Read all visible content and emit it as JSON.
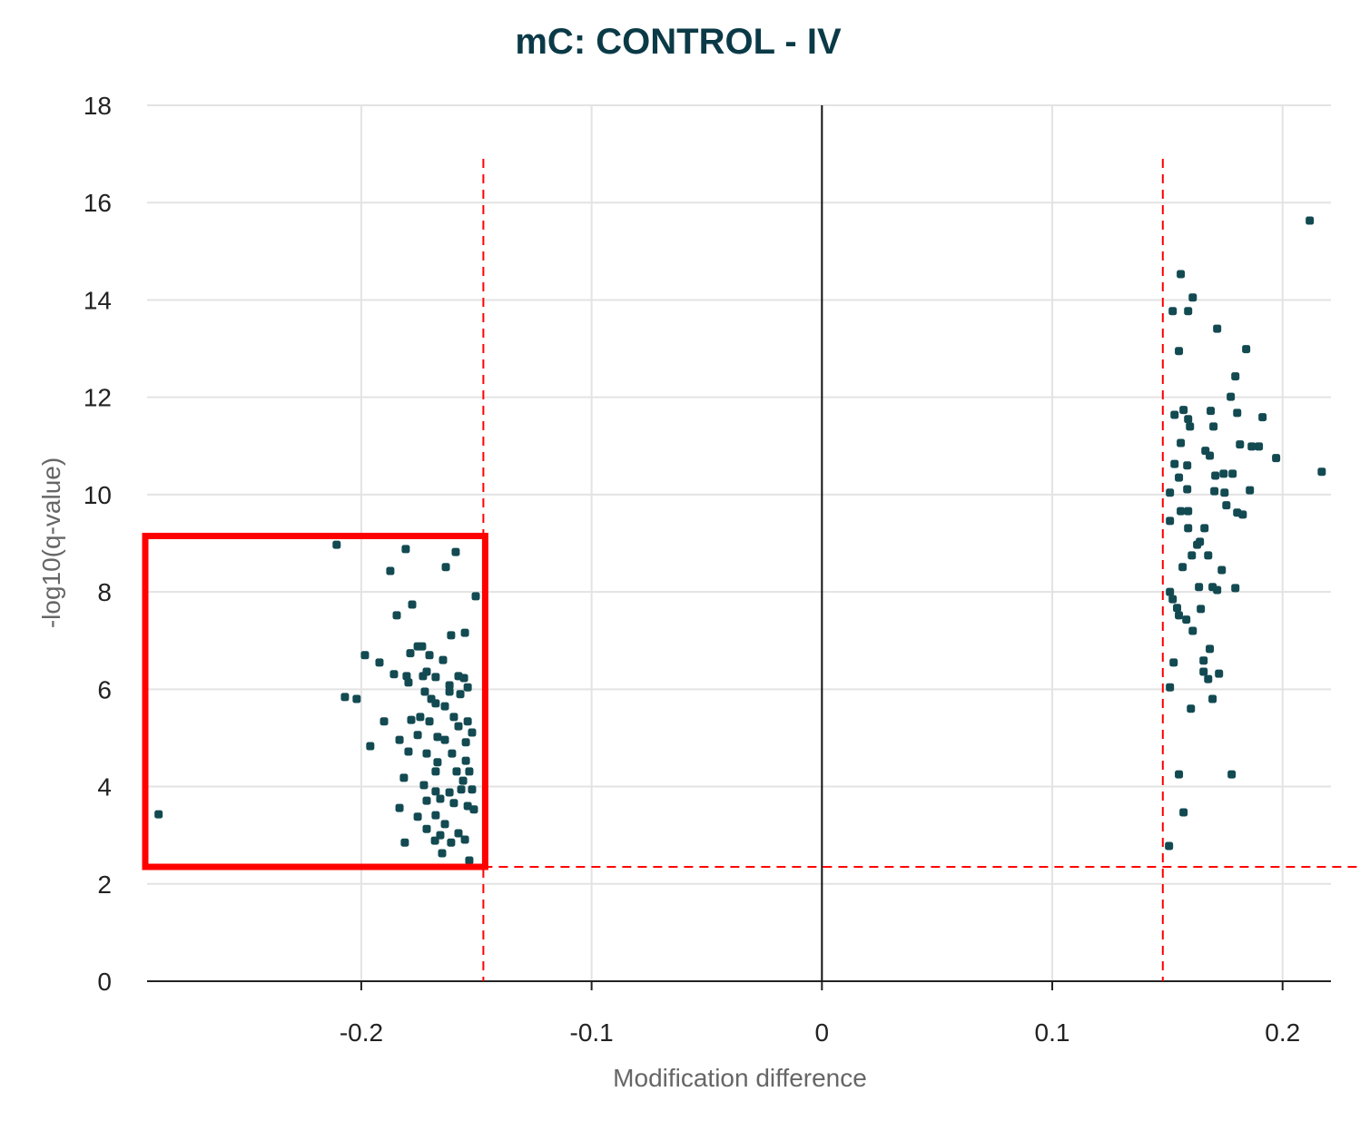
{
  "chart_data": {
    "type": "scatter",
    "title": "mC: CONTROL - IV",
    "xlabel": "Modification difference",
    "ylabel": "-log10(q-value)",
    "xlim": [
      -0.293,
      0.221
    ],
    "ylim": [
      0,
      18
    ],
    "xticks": [
      -0.2,
      -0.1,
      0,
      0.1,
      0.2
    ],
    "xtick_labels": [
      "-0.2",
      "-0.1",
      "0",
      "0.1",
      "0.2"
    ],
    "yticks": [
      0,
      2,
      4,
      6,
      8,
      10,
      12,
      14,
      16,
      18
    ],
    "ytick_labels": [
      "0",
      "2",
      "4",
      "6",
      "8",
      "10",
      "12",
      "14",
      "16",
      "18"
    ],
    "grid": true,
    "point_color": "#134a52",
    "threshold_color": "#ff0000",
    "thresholds": {
      "x": [
        -0.147,
        0.148
      ],
      "x_line_top": 16.9,
      "y": 2.35
    },
    "highlight_box": {
      "color": "#ff0000",
      "x": [
        -0.293,
        -0.147
      ],
      "y": [
        2.35,
        9.15
      ]
    },
    "points": [
      [
        0.2118,
        15.63
      ],
      [
        0.1558,
        14.53
      ],
      [
        0.161,
        14.05
      ],
      [
        0.1523,
        13.77
      ],
      [
        0.159,
        13.77
      ],
      [
        0.1716,
        13.41
      ],
      [
        0.155,
        12.95
      ],
      [
        0.1842,
        12.99
      ],
      [
        0.1795,
        12.43
      ],
      [
        0.1775,
        12.01
      ],
      [
        0.1531,
        11.64
      ],
      [
        0.157,
        11.74
      ],
      [
        0.1688,
        11.72
      ],
      [
        0.159,
        11.55
      ],
      [
        0.1803,
        11.68
      ],
      [
        0.1913,
        11.59
      ],
      [
        0.1598,
        11.4
      ],
      [
        0.17,
        11.4
      ],
      [
        0.1558,
        11.06
      ],
      [
        0.1815,
        11.03
      ],
      [
        0.1866,
        10.99
      ],
      [
        0.1897,
        10.99
      ],
      [
        0.1972,
        10.75
      ],
      [
        0.1665,
        10.9
      ],
      [
        0.1684,
        10.8
      ],
      [
        0.217,
        10.47
      ],
      [
        0.1531,
        10.63
      ],
      [
        0.1586,
        10.6
      ],
      [
        0.155,
        10.35
      ],
      [
        0.1708,
        10.39
      ],
      [
        0.1744,
        10.43
      ],
      [
        0.1783,
        10.43
      ],
      [
        0.1704,
        10.07
      ],
      [
        0.1586,
        10.11
      ],
      [
        0.1511,
        10.04
      ],
      [
        0.1748,
        10.04
      ],
      [
        0.1858,
        10.09
      ],
      [
        0.1756,
        9.78
      ],
      [
        0.1803,
        9.63
      ],
      [
        0.1827,
        9.59
      ],
      [
        0.1558,
        9.66
      ],
      [
        0.159,
        9.66
      ],
      [
        0.1511,
        9.46
      ],
      [
        0.1661,
        9.31
      ],
      [
        0.159,
        9.31
      ],
      [
        0.1641,
        9.03
      ],
      [
        0.1629,
        8.97
      ],
      [
        0.1677,
        8.75
      ],
      [
        0.1606,
        8.75
      ],
      [
        0.1566,
        8.51
      ],
      [
        0.1736,
        8.45
      ],
      [
        0.1637,
        8.1
      ],
      [
        0.1696,
        8.1
      ],
      [
        0.1716,
        8.04
      ],
      [
        0.1795,
        8.08
      ],
      [
        0.1511,
        8.0
      ],
      [
        0.1523,
        7.85
      ],
      [
        0.1542,
        7.67
      ],
      [
        0.1645,
        7.65
      ],
      [
        0.155,
        7.52
      ],
      [
        0.1582,
        7.43
      ],
      [
        0.161,
        7.2
      ],
      [
        0.1684,
        6.83
      ],
      [
        0.1657,
        6.59
      ],
      [
        0.1527,
        6.55
      ],
      [
        0.1724,
        6.32
      ],
      [
        0.1657,
        6.36
      ],
      [
        0.1677,
        6.21
      ],
      [
        0.1511,
        6.04
      ],
      [
        0.1696,
        5.8
      ],
      [
        0.1602,
        5.6
      ],
      [
        0.155,
        4.25
      ],
      [
        0.1779,
        4.25
      ],
      [
        0.157,
        3.47
      ],
      [
        0.1507,
        2.78
      ],
      [
        -0.2107,
        8.97
      ],
      [
        -0.1807,
        8.88
      ],
      [
        -0.159,
        8.82
      ],
      [
        -0.1633,
        8.51
      ],
      [
        -0.1874,
        8.43
      ],
      [
        -0.1503,
        7.91
      ],
      [
        -0.1779,
        7.74
      ],
      [
        -0.1846,
        7.52
      ],
      [
        -0.155,
        7.16
      ],
      [
        -0.161,
        7.11
      ],
      [
        -0.1984,
        6.7
      ],
      [
        -0.1921,
        6.55
      ],
      [
        -0.1755,
        6.88
      ],
      [
        -0.1736,
        6.88
      ],
      [
        -0.1787,
        6.74
      ],
      [
        -0.1704,
        6.7
      ],
      [
        -0.1645,
        6.6
      ],
      [
        -0.1716,
        6.36
      ],
      [
        -0.1858,
        6.31
      ],
      [
        -0.1803,
        6.27
      ],
      [
        -0.1732,
        6.27
      ],
      [
        -0.1677,
        6.25
      ],
      [
        -0.1578,
        6.27
      ],
      [
        -0.1554,
        6.23
      ],
      [
        -0.1617,
        6.08
      ],
      [
        -0.1538,
        6.04
      ],
      [
        -0.1795,
        6.14
      ],
      [
        -0.2071,
        5.84
      ],
      [
        -0.202,
        5.8
      ],
      [
        -0.1724,
        5.95
      ],
      [
        -0.1696,
        5.8
      ],
      [
        -0.1617,
        5.95
      ],
      [
        -0.157,
        5.9
      ],
      [
        -0.1677,
        5.71
      ],
      [
        -0.1637,
        5.65
      ],
      [
        -0.1744,
        5.43
      ],
      [
        -0.1783,
        5.37
      ],
      [
        -0.1704,
        5.34
      ],
      [
        -0.1598,
        5.43
      ],
      [
        -0.1538,
        5.34
      ],
      [
        -0.1901,
        5.34
      ],
      [
        -0.1961,
        4.83
      ],
      [
        -0.1834,
        4.96
      ],
      [
        -0.1755,
        5.06
      ],
      [
        -0.1669,
        5.02
      ],
      [
        -0.1637,
        4.96
      ],
      [
        -0.1795,
        4.72
      ],
      [
        -0.1716,
        4.68
      ],
      [
        -0.1578,
        5.24
      ],
      [
        -0.1546,
        4.91
      ],
      [
        -0.1519,
        5.11
      ],
      [
        -0.1669,
        4.5
      ],
      [
        -0.1606,
        4.68
      ],
      [
        -0.1546,
        4.53
      ],
      [
        -0.1586,
        4.31
      ],
      [
        -0.1677,
        4.31
      ],
      [
        -0.1558,
        4.12
      ],
      [
        -0.1815,
        4.18
      ],
      [
        -0.1728,
        4.03
      ],
      [
        -0.1677,
        3.9
      ],
      [
        -0.1617,
        3.88
      ],
      [
        -0.1566,
        3.94
      ],
      [
        -0.1531,
        4.31
      ],
      [
        -0.1519,
        3.94
      ],
      [
        -0.1716,
        3.71
      ],
      [
        -0.1657,
        3.75
      ],
      [
        -0.1598,
        3.66
      ],
      [
        -0.1538,
        3.6
      ],
      [
        -0.1834,
        3.56
      ],
      [
        -0.1511,
        3.53
      ],
      [
        -0.1755,
        3.38
      ],
      [
        -0.1677,
        3.41
      ],
      [
        -0.1637,
        3.23
      ],
      [
        -0.1716,
        3.13
      ],
      [
        -0.1657,
        3.0
      ],
      [
        -0.1578,
        3.04
      ],
      [
        -0.1811,
        2.85
      ],
      [
        -0.168,
        2.89
      ],
      [
        -0.161,
        2.85
      ],
      [
        -0.155,
        2.91
      ],
      [
        -0.1649,
        2.63
      ],
      [
        -0.1531,
        2.48
      ],
      [
        -0.288,
        3.43
      ]
    ]
  }
}
